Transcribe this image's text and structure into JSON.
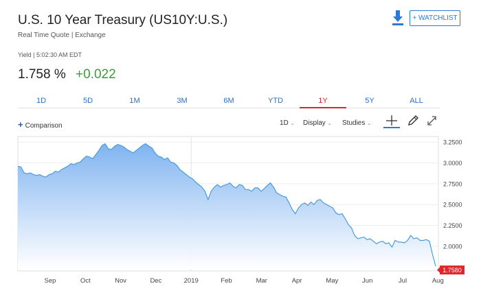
{
  "header": {
    "title": "U.S. 10 Year Treasury (US10Y:U.S.)",
    "subtitle": "Real Time Quote | Exchange",
    "watchlist_label": "+ WATCHLIST",
    "download_icon": "download-icon"
  },
  "quote": {
    "yield_line": "Yield | 5:02:30 AM EDT",
    "last": "1.758 %",
    "change": "+0.022",
    "change_color": "#3a9a3a"
  },
  "ranges": {
    "tabs": [
      "1D",
      "5D",
      "1M",
      "3M",
      "6M",
      "YTD",
      "1Y",
      "5Y",
      "ALL"
    ],
    "active": "1Y",
    "active_color": "#d8252b"
  },
  "controls": {
    "comparison_label": "Comparison",
    "interval_label": "1D",
    "display_label": "Display",
    "studies_label": "Studies",
    "crosshair_icon": "crosshair-icon",
    "draw_icon": "pencil-icon",
    "expand_icon": "expand-icon"
  },
  "chart_data": {
    "type": "area",
    "title": "",
    "xlabel": "",
    "ylabel": "",
    "x_tick_labels": [
      "Sep",
      "Oct",
      "Nov",
      "Dec",
      "2019",
      "Feb",
      "Mar",
      "Apr",
      "May",
      "Jun",
      "Jul",
      "Aug"
    ],
    "y_tick_labels": [
      "3.2500",
      "3.0000",
      "2.7500",
      "2.5000",
      "2.2500",
      "2.0000"
    ],
    "ylim": [
      1.72,
      3.3
    ],
    "last_value_label": "1.7580",
    "line_color": "#4a9bd8",
    "fill_top_color": "#7fb3f0",
    "series": [
      {
        "values": [
          2.96,
          2.95,
          2.88,
          2.87,
          2.88,
          2.86,
          2.85,
          2.86,
          2.84,
          2.83,
          2.86,
          2.87,
          2.9,
          2.89,
          2.92,
          2.94,
          2.96,
          2.99,
          2.98,
          3.0,
          3.01,
          3.05,
          3.08,
          3.07,
          3.05,
          3.1,
          3.15,
          3.21,
          3.23,
          3.17,
          3.16,
          3.2,
          3.22,
          3.21,
          3.19,
          3.16,
          3.14,
          3.12,
          3.15,
          3.18,
          3.21,
          3.23,
          3.2,
          3.18,
          3.12,
          3.08,
          3.07,
          3.04,
          3.06,
          3.01,
          3.0,
          2.97,
          2.92,
          2.89,
          2.86,
          2.83,
          2.81,
          2.77,
          2.74,
          2.71,
          2.66,
          2.56,
          2.66,
          2.71,
          2.74,
          2.71,
          2.73,
          2.74,
          2.76,
          2.72,
          2.7,
          2.74,
          2.73,
          2.68,
          2.68,
          2.66,
          2.7,
          2.7,
          2.66,
          2.69,
          2.73,
          2.76,
          2.71,
          2.64,
          2.62,
          2.6,
          2.59,
          2.52,
          2.44,
          2.39,
          2.46,
          2.5,
          2.52,
          2.49,
          2.53,
          2.5,
          2.55,
          2.56,
          2.52,
          2.5,
          2.48,
          2.46,
          2.4,
          2.38,
          2.39,
          2.33,
          2.26,
          2.22,
          2.13,
          2.09,
          2.1,
          2.11,
          2.08,
          2.09,
          2.06,
          2.03,
          2.05,
          2.06,
          2.03,
          2.04,
          1.99,
          2.07,
          2.05,
          2.05,
          2.04,
          2.07,
          2.13,
          2.09,
          2.1,
          2.07,
          2.07,
          2.08,
          2.06,
          1.9,
          1.76
        ]
      }
    ]
  }
}
